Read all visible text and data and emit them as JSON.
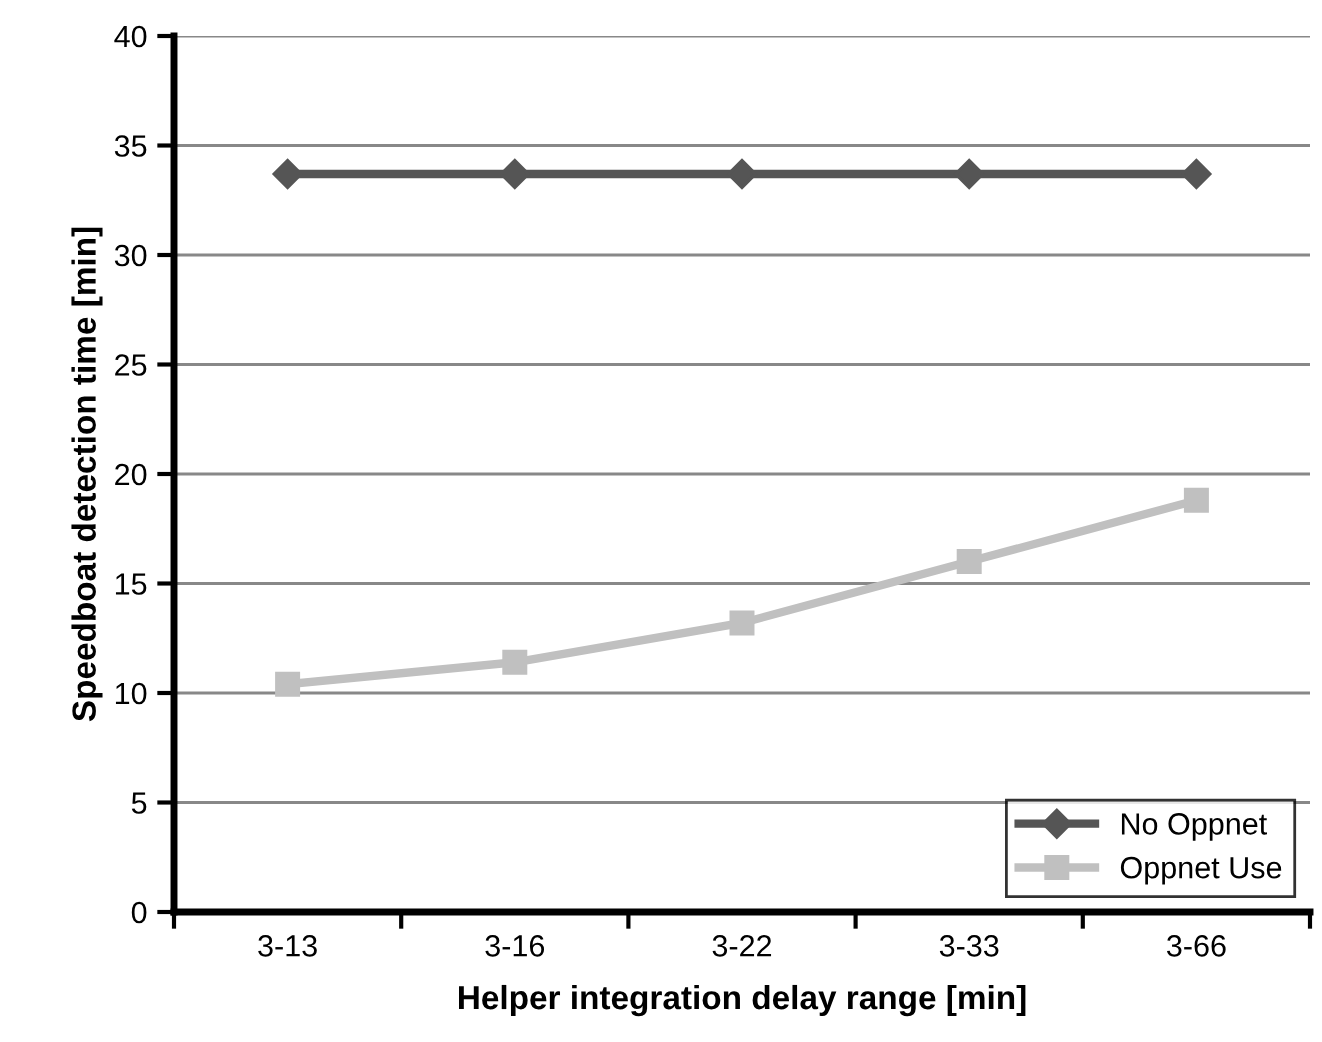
{
  "chart_data": {
    "type": "line",
    "xlabel": "Helper integration delay range [min]",
    "ylabel": "Speedboat detection time [min]",
    "categories": [
      "3-13",
      "3-16",
      "3-22",
      "3-33",
      "3-66"
    ],
    "series": [
      {
        "name": "No Oppnet",
        "color": "#555555",
        "marker": "diamond",
        "values": [
          33.7,
          33.7,
          33.7,
          33.7,
          33.7
        ]
      },
      {
        "name": "Oppnet Use",
        "color": "#c0c0c0",
        "marker": "square",
        "values": [
          10.4,
          11.4,
          13.2,
          16.0,
          18.8
        ]
      }
    ],
    "ylim": [
      0,
      40
    ],
    "yticks": [
      0,
      5,
      10,
      15,
      20,
      25,
      30,
      35,
      40
    ],
    "grid": "y",
    "legend": "bottom right"
  }
}
